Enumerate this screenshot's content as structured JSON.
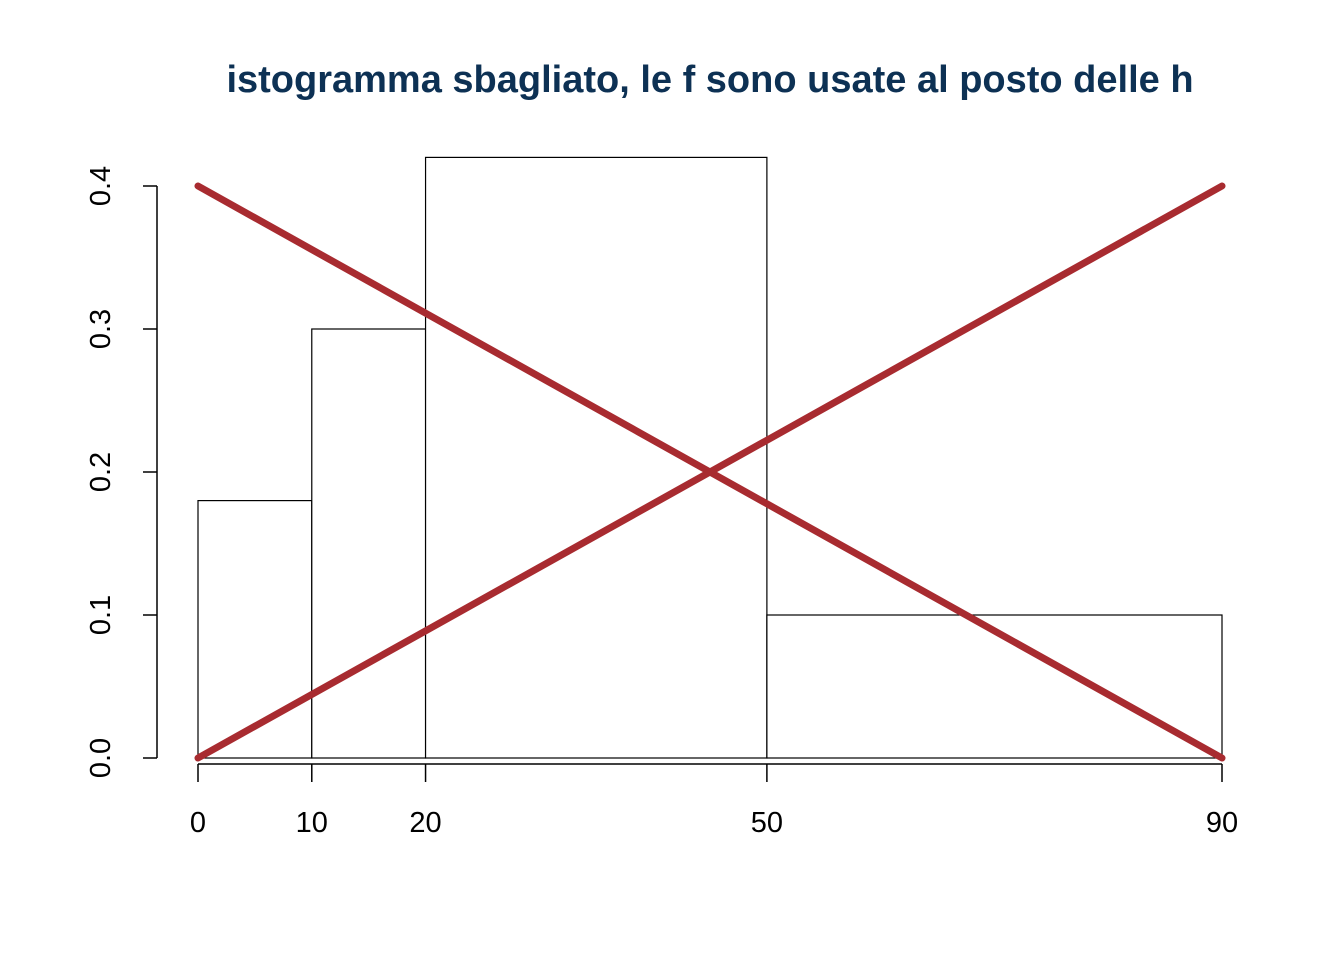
{
  "chart_data": {
    "type": "histogram",
    "title": "istogramma sbagliato, le f sono usate al posto delle h",
    "xlabel": "",
    "ylabel": "",
    "breaks": [
      0,
      10,
      20,
      50,
      90
    ],
    "bins": [
      {
        "from": 0,
        "to": 10,
        "value": 0.18
      },
      {
        "from": 10,
        "to": 20,
        "value": 0.3
      },
      {
        "from": 20,
        "to": 50,
        "value": 0.42
      },
      {
        "from": 50,
        "to": 90,
        "value": 0.1
      }
    ],
    "xlim": [
      0,
      90
    ],
    "ylim": [
      0,
      0.42
    ],
    "x_ticks": [
      "0",
      "10",
      "20",
      "50",
      "90"
    ],
    "y_ticks": [
      "0.0",
      "0.1",
      "0.2",
      "0.3",
      "0.4"
    ],
    "grid": false,
    "cross_lines": [
      {
        "x": [
          0,
          90
        ],
        "y": [
          0.4,
          0
        ]
      },
      {
        "x": [
          0,
          90
        ],
        "y": [
          0,
          0.4
        ]
      }
    ],
    "colors": {
      "title": "#0d3154",
      "cross": "#a82b30",
      "bars_stroke": "#000000",
      "bars_fill": "#ffffff"
    }
  }
}
